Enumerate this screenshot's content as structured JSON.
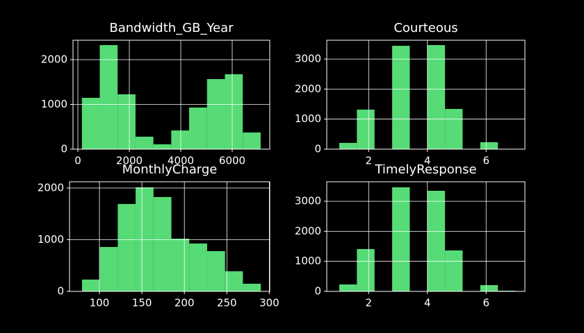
{
  "chart_data": [
    {
      "type": "histogram",
      "title": "Bandwidth_GB_Year",
      "bins": [
        155,
        850,
        1545,
        2240,
        2935,
        3630,
        4325,
        5020,
        5715,
        6410,
        7105
      ],
      "values": [
        1147,
        2325,
        1225,
        279,
        108,
        418,
        930,
        1566,
        1674,
        372
      ],
      "color": "#56db76",
      "xlim": [
        -190,
        7459
      ],
      "ylim": [
        0,
        2434
      ],
      "xticks": [
        0,
        2000,
        4000,
        6000
      ],
      "yticks": [
        0,
        1000,
        2000
      ],
      "grid": true
    },
    {
      "type": "histogram",
      "title": "Courteous",
      "bins": [
        1,
        1.6,
        2.2,
        2.8,
        3.4,
        4.0,
        4.6,
        5.2,
        5.8,
        6.4,
        7.0
      ],
      "values": [
        208,
        1316,
        0,
        3441,
        0,
        3464,
        1339,
        0,
        231,
        0
      ],
      "color": "#56db76",
      "xlim": [
        0.574,
        7.32
      ],
      "ylim": [
        0,
        3626
      ],
      "xticks": [
        2,
        4,
        6
      ],
      "yticks": [
        0,
        1000,
        2000,
        3000
      ],
      "grid": true
    },
    {
      "type": "histogram",
      "title": "MonthlyCharge",
      "bins": [
        79.5,
        100.5,
        121.6,
        142.6,
        163.7,
        184.7,
        205.8,
        226.8,
        247.9,
        268.9,
        290
      ],
      "values": [
        228,
        859,
        1691,
        2013,
        1826,
        1020,
        926,
        779,
        389,
        148
      ],
      "color": "#56db76",
      "xlim": [
        64.8,
        300.5
      ],
      "ylim": [
        0,
        2121
      ],
      "xticks": [
        100,
        150,
        200,
        250,
        300
      ],
      "yticks": [
        0,
        1000,
        2000
      ],
      "grid": true
    },
    {
      "type": "histogram",
      "title": "TimelyResponse",
      "bins": [
        1,
        1.6,
        2.2,
        2.8,
        3.4,
        4.0,
        4.6,
        5.2,
        5.8,
        6.4,
        7.0
      ],
      "values": [
        231,
        1409,
        0,
        3464,
        0,
        3349,
        1363,
        0,
        208,
        23
      ],
      "color": "#56db76",
      "xlim": [
        0.574,
        7.32
      ],
      "ylim": [
        0,
        3649
      ],
      "xticks": [
        2,
        4,
        6
      ],
      "yticks": [
        0,
        1000,
        2000,
        3000
      ],
      "grid": true
    }
  ]
}
